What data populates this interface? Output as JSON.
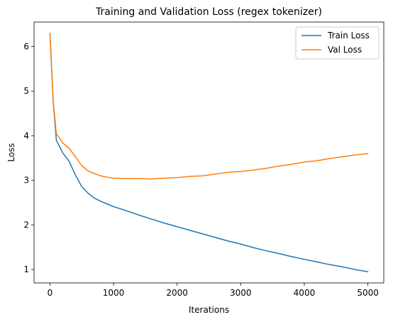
{
  "chart_data": {
    "type": "line",
    "title": "Training and Validation Loss (regex tokenizer)",
    "xlabel": "Iterations",
    "ylabel": "Loss",
    "xlim": [
      -250,
      5250
    ],
    "ylim": [
      0.7,
      6.55
    ],
    "xticks": [
      0,
      1000,
      2000,
      3000,
      4000,
      5000
    ],
    "yticks": [
      1,
      2,
      3,
      4,
      5,
      6
    ],
    "legend_position": "top-right",
    "grid": false,
    "x": [
      0,
      50,
      100,
      200,
      300,
      400,
      500,
      600,
      700,
      800,
      900,
      1000,
      1200,
      1400,
      1600,
      1800,
      2000,
      2200,
      2400,
      2600,
      2800,
      3000,
      3200,
      3400,
      3600,
      3800,
      4000,
      4200,
      4400,
      4600,
      4800,
      5000
    ],
    "series": [
      {
        "name": "Train Loss",
        "color": "#1f77b4",
        "values": [
          6.3,
          4.8,
          3.9,
          3.62,
          3.43,
          3.12,
          2.86,
          2.71,
          2.6,
          2.53,
          2.47,
          2.41,
          2.32,
          2.22,
          2.13,
          2.04,
          1.96,
          1.88,
          1.8,
          1.72,
          1.64,
          1.57,
          1.49,
          1.42,
          1.36,
          1.29,
          1.23,
          1.17,
          1.11,
          1.06,
          1.0,
          0.95
        ]
      },
      {
        "name": "Val Loss",
        "color": "#ff7f0e",
        "values": [
          6.3,
          4.8,
          4.05,
          3.84,
          3.72,
          3.53,
          3.33,
          3.21,
          3.15,
          3.1,
          3.07,
          3.05,
          3.04,
          3.04,
          3.03,
          3.05,
          3.06,
          3.09,
          3.1,
          3.14,
          3.18,
          3.2,
          3.23,
          3.27,
          3.32,
          3.36,
          3.41,
          3.44,
          3.49,
          3.53,
          3.57,
          3.6
        ]
      }
    ]
  }
}
